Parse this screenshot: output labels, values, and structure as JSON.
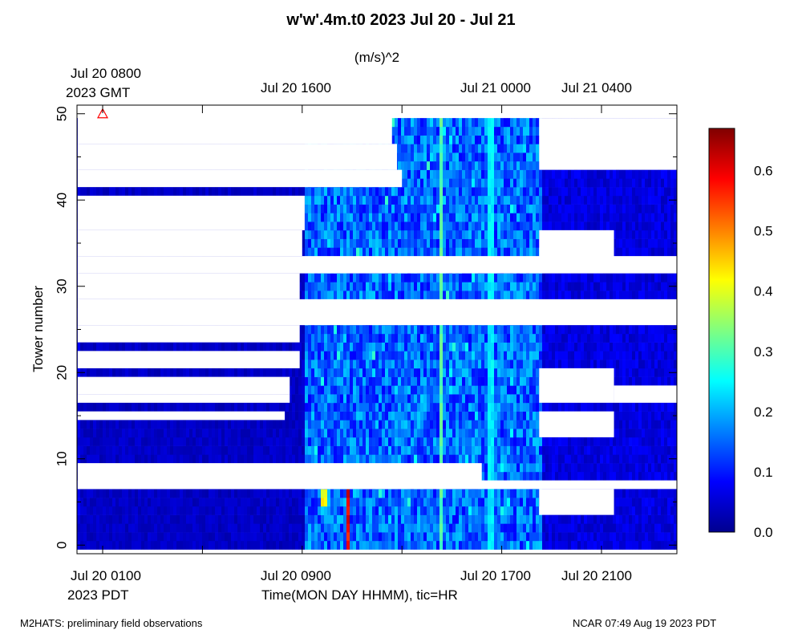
{
  "chart_data": {
    "type": "heatmap",
    "title": "w'w'.4m.t0 2023 Jul 20 - Jul 21",
    "colorbar_label": "(m/s)^2",
    "xlabel": "Time(MON DAY HHMM), tic=HR",
    "ylabel": "Tower number",
    "ylim": [
      -1,
      51
    ],
    "yticks": [
      "0",
      "10",
      "20",
      "30",
      "40",
      "50"
    ],
    "x_range_pdt_hours": [
      1,
      25
    ],
    "bottom_axis_ticks": [
      {
        "hour": 1,
        "label": "Jul 20 0100",
        "sublabel": "2023 PDT"
      },
      {
        "hour": 9,
        "label": "Jul 20 0900",
        "sublabel": ""
      },
      {
        "hour": 17,
        "label": "Jul 20 1700",
        "sublabel": ""
      },
      {
        "hour": 21,
        "label": "Jul 20 2100",
        "sublabel": ""
      }
    ],
    "top_axis_ticks": [
      {
        "hour": 1,
        "label": "Jul 20 0800",
        "sublabel": "2023 GMT"
      },
      {
        "hour": 9,
        "label": "Jul 20 1600",
        "sublabel": ""
      },
      {
        "hour": 17,
        "label": "Jul 21 0000",
        "sublabel": ""
      },
      {
        "hour": 21,
        "label": "Jul 21 0400",
        "sublabel": ""
      }
    ],
    "colorbar_range": [
      0,
      0.67
    ],
    "colorbar_ticks": [
      "0.0",
      "0.1",
      "0.2",
      "0.3",
      "0.4",
      "0.5",
      "0.6"
    ],
    "colormap": [
      "#00008f",
      "#0000ff",
      "#00ffff",
      "#ffff00",
      "#ff0000",
      "#800000"
    ],
    "marker": {
      "hour": 1,
      "tower": 50,
      "color": "#ff0000"
    },
    "phases": [
      {
        "from_hour": 0,
        "to_hour": 9,
        "typical_value": 0.04
      },
      {
        "from_hour": 9,
        "to_hour": 18.5,
        "typical_value": 0.15
      },
      {
        "from_hour": 18.5,
        "to_hour": 25,
        "typical_value": 0.06
      }
    ],
    "peaks": [
      {
        "tower_range": [
          0,
          6
        ],
        "hour": 10.8,
        "value": 0.64
      },
      {
        "tower_range": [
          5,
          6
        ],
        "hour": 9.8,
        "value": 0.45
      },
      {
        "tower_range": [
          0,
          49
        ],
        "hour": 14.5,
        "value": 0.33
      },
      {
        "tower_range": [
          0,
          49
        ],
        "hour": 16.5,
        "value": 0.26
      }
    ],
    "missing_data": [
      {
        "towers": [
          47,
          50
        ],
        "from_hour": 0,
        "to_hour": 12.6
      },
      {
        "towers": [
          44,
          46
        ],
        "from_hour": 0,
        "to_hour": 12.8
      },
      {
        "towers": [
          42,
          43
        ],
        "from_hour": 0,
        "to_hour": 13.0
      },
      {
        "towers": [
          37,
          40
        ],
        "from_hour": 0,
        "to_hour": 9.1
      },
      {
        "towers": [
          34,
          36
        ],
        "from_hour": 0,
        "to_hour": 9.0
      },
      {
        "towers": [
          32,
          33
        ],
        "from_hour": 0,
        "to_hour": 25
      },
      {
        "towers": [
          29,
          31
        ],
        "from_hour": 0,
        "to_hour": 8.9
      },
      {
        "towers": [
          26,
          28
        ],
        "from_hour": 0,
        "to_hour": 25
      },
      {
        "towers": [
          24,
          25
        ],
        "from_hour": 0,
        "to_hour": 8.9
      },
      {
        "towers": [
          21,
          22
        ],
        "from_hour": 0,
        "to_hour": 8.9
      },
      {
        "towers": [
          18,
          19
        ],
        "from_hour": 0,
        "to_hour": 8.5
      },
      {
        "towers": [
          17,
          17
        ],
        "from_hour": 0,
        "to_hour": 8.5
      },
      {
        "towers": [
          15,
          15
        ],
        "from_hour": 0,
        "to_hour": 8.3
      },
      {
        "towers": [
          7,
          9
        ],
        "from_hour": 0,
        "to_hour": 16.2
      },
      {
        "towers": [
          7,
          7
        ],
        "from_hour": 0,
        "to_hour": 25
      },
      {
        "towers": [
          44,
          49
        ],
        "from_hour": 18.5,
        "to_hour": 25
      },
      {
        "towers": [
          33,
          36
        ],
        "from_hour": 18.5,
        "to_hour": 21.5
      },
      {
        "towers": [
          17,
          20
        ],
        "from_hour": 18.5,
        "to_hour": 21.5
      },
      {
        "towers": [
          17,
          18
        ],
        "from_hour": 21.5,
        "to_hour": 25
      },
      {
        "towers": [
          13,
          15
        ],
        "from_hour": 18.5,
        "to_hour": 21.5
      },
      {
        "towers": [
          4,
          6
        ],
        "from_hour": 18.5,
        "to_hour": 21.5
      }
    ]
  },
  "footer": {
    "left": "M2HATS: preliminary field observations",
    "right": "NCAR 07:49 Aug 19 2023 PDT"
  }
}
